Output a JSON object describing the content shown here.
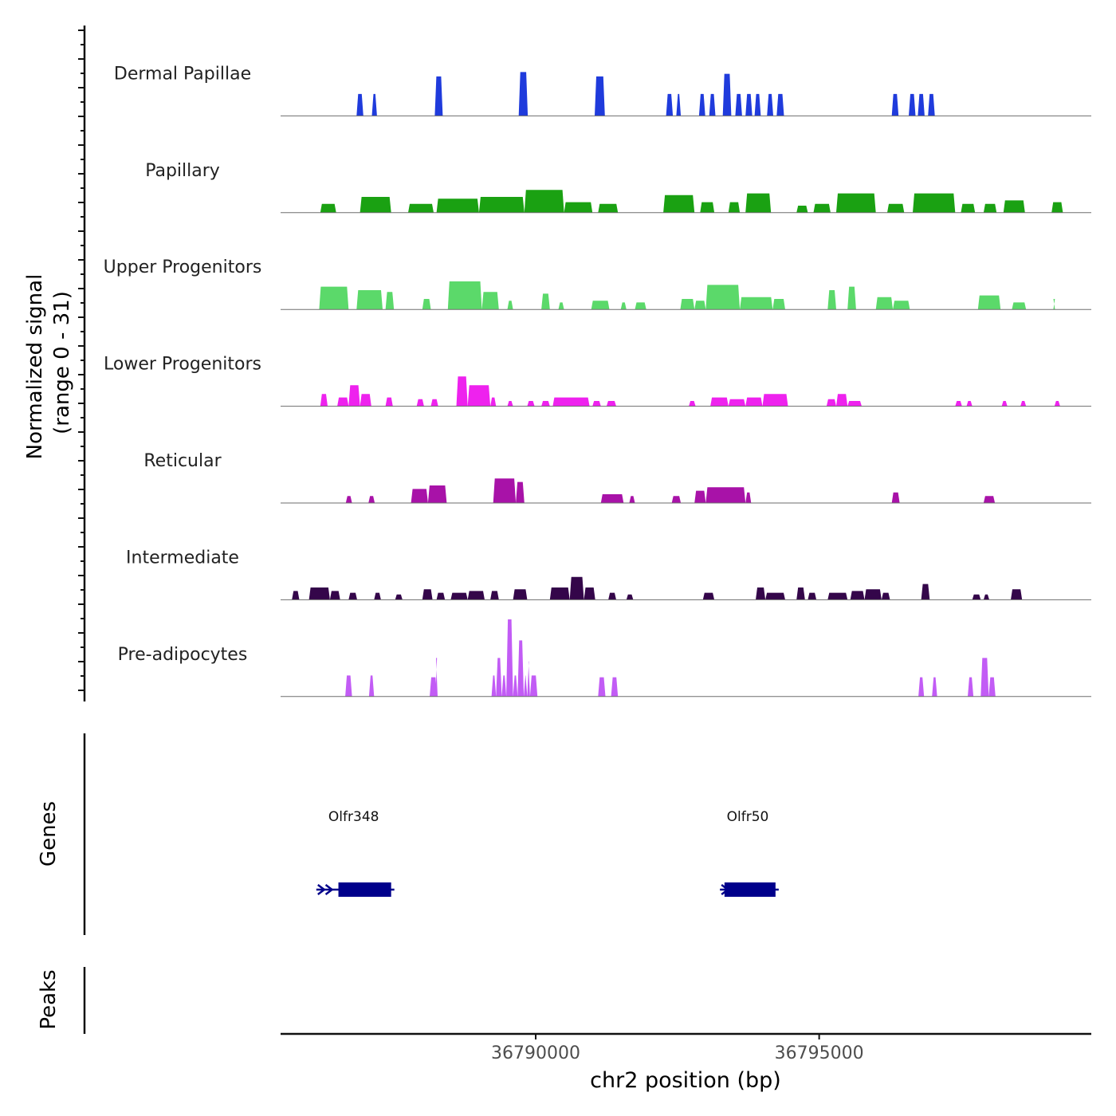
{
  "chart_data": {
    "type": "area",
    "title": "",
    "ylabel_line1": "Normalized signal",
    "ylabel_line2": "(range 0 - 31)",
    "y_range": [
      0,
      31
    ],
    "xlabel": "chr2 position (bp)",
    "xlim": [
      36785500,
      36799800
    ],
    "x_ticks": [
      36790000,
      36795000
    ],
    "x_tick_labels": [
      "36790000",
      "36795000"
    ],
    "tracks": [
      {
        "name": "Dermal Papillae",
        "color": "#1f3bdc",
        "blocks": [
          {
            "s": 36786840,
            "e": 36786960,
            "h": 0.25
          },
          {
            "s": 36787110,
            "e": 36787200,
            "h": 0.25
          },
          {
            "s": 36788220,
            "e": 36788360,
            "h": 0.45
          },
          {
            "s": 36789700,
            "e": 36789860,
            "h": 0.5
          },
          {
            "s": 36791040,
            "e": 36791220,
            "h": 0.45
          },
          {
            "s": 36792300,
            "e": 36792420,
            "h": 0.25
          },
          {
            "s": 36792480,
            "e": 36792560,
            "h": 0.25
          },
          {
            "s": 36792880,
            "e": 36792990,
            "h": 0.25
          },
          {
            "s": 36793060,
            "e": 36793170,
            "h": 0.25
          },
          {
            "s": 36793300,
            "e": 36793450,
            "h": 0.48
          },
          {
            "s": 36793520,
            "e": 36793640,
            "h": 0.25
          },
          {
            "s": 36793700,
            "e": 36793820,
            "h": 0.25
          },
          {
            "s": 36793860,
            "e": 36793970,
            "h": 0.25
          },
          {
            "s": 36794080,
            "e": 36794190,
            "h": 0.25
          },
          {
            "s": 36794250,
            "e": 36794380,
            "h": 0.25
          },
          {
            "s": 36796280,
            "e": 36796400,
            "h": 0.25
          },
          {
            "s": 36796580,
            "e": 36796700,
            "h": 0.25
          },
          {
            "s": 36796740,
            "e": 36796860,
            "h": 0.25
          },
          {
            "s": 36796920,
            "e": 36797040,
            "h": 0.25
          }
        ]
      },
      {
        "name": "Papillary",
        "color": "#1aa112",
        "blocks": [
          {
            "s": 36786200,
            "e": 36786480,
            "h": 0.1
          },
          {
            "s": 36786900,
            "e": 36787450,
            "h": 0.18
          },
          {
            "s": 36787750,
            "e": 36788200,
            "h": 0.1
          },
          {
            "s": 36788250,
            "e": 36789000,
            "h": 0.16
          },
          {
            "s": 36789000,
            "e": 36789800,
            "h": 0.18
          },
          {
            "s": 36789800,
            "e": 36790500,
            "h": 0.26
          },
          {
            "s": 36790500,
            "e": 36791000,
            "h": 0.12
          },
          {
            "s": 36791100,
            "e": 36791450,
            "h": 0.1
          },
          {
            "s": 36792250,
            "e": 36792800,
            "h": 0.2
          },
          {
            "s": 36792900,
            "e": 36793150,
            "h": 0.12
          },
          {
            "s": 36793400,
            "e": 36793600,
            "h": 0.12
          },
          {
            "s": 36793700,
            "e": 36794150,
            "h": 0.22
          },
          {
            "s": 36794600,
            "e": 36794800,
            "h": 0.08
          },
          {
            "s": 36794900,
            "e": 36795200,
            "h": 0.1
          },
          {
            "s": 36795300,
            "e": 36796000,
            "h": 0.22
          },
          {
            "s": 36796200,
            "e": 36796500,
            "h": 0.1
          },
          {
            "s": 36796650,
            "e": 36797400,
            "h": 0.22
          },
          {
            "s": 36797500,
            "e": 36797750,
            "h": 0.1
          },
          {
            "s": 36797900,
            "e": 36798130,
            "h": 0.1
          },
          {
            "s": 36798250,
            "e": 36798630,
            "h": 0.14
          },
          {
            "s": 36799100,
            "e": 36799300,
            "h": 0.12
          }
        ]
      },
      {
        "name": "Upper Progenitors",
        "color": "#5bd96a",
        "blocks": [
          {
            "s": 36786180,
            "e": 36786700,
            "h": 0.26
          },
          {
            "s": 36786840,
            "e": 36787300,
            "h": 0.22
          },
          {
            "s": 36787350,
            "e": 36787500,
            "h": 0.2
          },
          {
            "s": 36788000,
            "e": 36788150,
            "h": 0.12
          },
          {
            "s": 36788450,
            "e": 36789050,
            "h": 0.32
          },
          {
            "s": 36789050,
            "e": 36789350,
            "h": 0.2
          },
          {
            "s": 36789500,
            "e": 36789600,
            "h": 0.1
          },
          {
            "s": 36790100,
            "e": 36790250,
            "h": 0.18
          },
          {
            "s": 36790400,
            "e": 36790500,
            "h": 0.08
          },
          {
            "s": 36790980,
            "e": 36791300,
            "h": 0.1
          },
          {
            "s": 36791500,
            "e": 36791600,
            "h": 0.08
          },
          {
            "s": 36791750,
            "e": 36791950,
            "h": 0.08
          },
          {
            "s": 36792550,
            "e": 36792800,
            "h": 0.12
          },
          {
            "s": 36792800,
            "e": 36793000,
            "h": 0.1
          },
          {
            "s": 36793000,
            "e": 36793600,
            "h": 0.28
          },
          {
            "s": 36793600,
            "e": 36794180,
            "h": 0.14
          },
          {
            "s": 36794180,
            "e": 36794400,
            "h": 0.12
          },
          {
            "s": 36795150,
            "e": 36795300,
            "h": 0.22
          },
          {
            "s": 36795500,
            "e": 36795650,
            "h": 0.26
          },
          {
            "s": 36796000,
            "e": 36796300,
            "h": 0.14
          },
          {
            "s": 36796300,
            "e": 36796600,
            "h": 0.1
          },
          {
            "s": 36797800,
            "e": 36798200,
            "h": 0.16
          },
          {
            "s": 36798400,
            "e": 36798650,
            "h": 0.08
          },
          {
            "s": 36799130,
            "e": 36799160,
            "h": 0.12
          }
        ]
      },
      {
        "name": "Lower Progenitors",
        "color": "#ee22ee",
        "blocks": [
          {
            "s": 36786200,
            "e": 36786330,
            "h": 0.14
          },
          {
            "s": 36786500,
            "e": 36786700,
            "h": 0.1
          },
          {
            "s": 36786700,
            "e": 36786900,
            "h": 0.24
          },
          {
            "s": 36786900,
            "e": 36787100,
            "h": 0.14
          },
          {
            "s": 36787350,
            "e": 36787480,
            "h": 0.1
          },
          {
            "s": 36787900,
            "e": 36788030,
            "h": 0.08
          },
          {
            "s": 36788150,
            "e": 36788280,
            "h": 0.08
          },
          {
            "s": 36788600,
            "e": 36788800,
            "h": 0.34
          },
          {
            "s": 36788800,
            "e": 36789200,
            "h": 0.24
          },
          {
            "s": 36789200,
            "e": 36789300,
            "h": 0.1
          },
          {
            "s": 36789500,
            "e": 36789600,
            "h": 0.06
          },
          {
            "s": 36789850,
            "e": 36789980,
            "h": 0.06
          },
          {
            "s": 36790100,
            "e": 36790250,
            "h": 0.06
          },
          {
            "s": 36790300,
            "e": 36790950,
            "h": 0.1
          },
          {
            "s": 36791000,
            "e": 36791150,
            "h": 0.06
          },
          {
            "s": 36791250,
            "e": 36791420,
            "h": 0.06
          },
          {
            "s": 36792700,
            "e": 36792820,
            "h": 0.06
          },
          {
            "s": 36793080,
            "e": 36793400,
            "h": 0.1
          },
          {
            "s": 36793400,
            "e": 36793700,
            "h": 0.08
          },
          {
            "s": 36793700,
            "e": 36794000,
            "h": 0.1
          },
          {
            "s": 36794000,
            "e": 36794450,
            "h": 0.14
          },
          {
            "s": 36795130,
            "e": 36795300,
            "h": 0.08
          },
          {
            "s": 36795300,
            "e": 36795500,
            "h": 0.14
          },
          {
            "s": 36795500,
            "e": 36795750,
            "h": 0.06
          },
          {
            "s": 36797400,
            "e": 36797520,
            "h": 0.06
          },
          {
            "s": 36797600,
            "e": 36797700,
            "h": 0.06
          },
          {
            "s": 36798220,
            "e": 36798320,
            "h": 0.06
          },
          {
            "s": 36798550,
            "e": 36798650,
            "h": 0.06
          },
          {
            "s": 36799150,
            "e": 36799250,
            "h": 0.06
          }
        ]
      },
      {
        "name": "Reticular",
        "color": "#a812a8",
        "blocks": [
          {
            "s": 36786650,
            "e": 36786760,
            "h": 0.08
          },
          {
            "s": 36787050,
            "e": 36787160,
            "h": 0.08
          },
          {
            "s": 36787800,
            "e": 36788100,
            "h": 0.16
          },
          {
            "s": 36788100,
            "e": 36788430,
            "h": 0.2
          },
          {
            "s": 36789250,
            "e": 36789650,
            "h": 0.28
          },
          {
            "s": 36789650,
            "e": 36789800,
            "h": 0.24
          },
          {
            "s": 36791150,
            "e": 36791550,
            "h": 0.1
          },
          {
            "s": 36791650,
            "e": 36791750,
            "h": 0.08
          },
          {
            "s": 36792400,
            "e": 36792560,
            "h": 0.08
          },
          {
            "s": 36792800,
            "e": 36793000,
            "h": 0.14
          },
          {
            "s": 36793000,
            "e": 36793700,
            "h": 0.18
          },
          {
            "s": 36793700,
            "e": 36793800,
            "h": 0.12
          },
          {
            "s": 36796280,
            "e": 36796420,
            "h": 0.12
          },
          {
            "s": 36797900,
            "e": 36798100,
            "h": 0.08
          }
        ]
      },
      {
        "name": "Intermediate",
        "color": "#34064a",
        "blocks": [
          {
            "s": 36785700,
            "e": 36785830,
            "h": 0.1
          },
          {
            "s": 36786000,
            "e": 36786370,
            "h": 0.14
          },
          {
            "s": 36786370,
            "e": 36786550,
            "h": 0.1
          },
          {
            "s": 36786700,
            "e": 36786850,
            "h": 0.08
          },
          {
            "s": 36787150,
            "e": 36787270,
            "h": 0.08
          },
          {
            "s": 36787520,
            "e": 36787650,
            "h": 0.06
          },
          {
            "s": 36788000,
            "e": 36788180,
            "h": 0.12
          },
          {
            "s": 36788250,
            "e": 36788400,
            "h": 0.08
          },
          {
            "s": 36788500,
            "e": 36788800,
            "h": 0.08
          },
          {
            "s": 36788800,
            "e": 36789100,
            "h": 0.1
          },
          {
            "s": 36789200,
            "e": 36789350,
            "h": 0.1
          },
          {
            "s": 36789600,
            "e": 36789850,
            "h": 0.12
          },
          {
            "s": 36790250,
            "e": 36790600,
            "h": 0.14
          },
          {
            "s": 36790600,
            "e": 36790850,
            "h": 0.26
          },
          {
            "s": 36790850,
            "e": 36791050,
            "h": 0.14
          },
          {
            "s": 36791280,
            "e": 36791420,
            "h": 0.08
          },
          {
            "s": 36791600,
            "e": 36791720,
            "h": 0.06
          },
          {
            "s": 36792950,
            "e": 36793150,
            "h": 0.08
          },
          {
            "s": 36793880,
            "e": 36794050,
            "h": 0.14
          },
          {
            "s": 36794050,
            "e": 36794400,
            "h": 0.08
          },
          {
            "s": 36794600,
            "e": 36794750,
            "h": 0.14
          },
          {
            "s": 36794800,
            "e": 36794950,
            "h": 0.08
          },
          {
            "s": 36795150,
            "e": 36795500,
            "h": 0.08
          },
          {
            "s": 36795550,
            "e": 36795800,
            "h": 0.1
          },
          {
            "s": 36795800,
            "e": 36796100,
            "h": 0.12
          },
          {
            "s": 36796100,
            "e": 36796250,
            "h": 0.08
          },
          {
            "s": 36796800,
            "e": 36796950,
            "h": 0.18
          },
          {
            "s": 36797700,
            "e": 36797850,
            "h": 0.06
          },
          {
            "s": 36797900,
            "e": 36798000,
            "h": 0.06
          },
          {
            "s": 36798380,
            "e": 36798580,
            "h": 0.12
          }
        ]
      },
      {
        "name": "Pre-adipocytes",
        "color": "#c25cf5",
        "blocks": [
          {
            "s": 36786640,
            "e": 36786760,
            "h": 0.24
          },
          {
            "s": 36787060,
            "e": 36787150,
            "h": 0.24
          },
          {
            "s": 36788130,
            "e": 36788260,
            "h": 0.22
          },
          {
            "s": 36788230,
            "e": 36788270,
            "h": 0.44
          },
          {
            "s": 36789220,
            "e": 36789300,
            "h": 0.24
          },
          {
            "s": 36789300,
            "e": 36789400,
            "h": 0.44
          },
          {
            "s": 36789400,
            "e": 36789480,
            "h": 0.24
          },
          {
            "s": 36789480,
            "e": 36789600,
            "h": 0.88
          },
          {
            "s": 36789600,
            "e": 36789680,
            "h": 0.24
          },
          {
            "s": 36789680,
            "e": 36789790,
            "h": 0.64
          },
          {
            "s": 36789790,
            "e": 36789850,
            "h": 0.24
          },
          {
            "s": 36789850,
            "e": 36789900,
            "h": 0.4
          },
          {
            "s": 36789900,
            "e": 36790030,
            "h": 0.24
          },
          {
            "s": 36791100,
            "e": 36791230,
            "h": 0.22
          },
          {
            "s": 36791330,
            "e": 36791450,
            "h": 0.22
          },
          {
            "s": 36796750,
            "e": 36796850,
            "h": 0.22
          },
          {
            "s": 36796990,
            "e": 36797080,
            "h": 0.22
          },
          {
            "s": 36797620,
            "e": 36797720,
            "h": 0.22
          },
          {
            "s": 36797850,
            "e": 36797990,
            "h": 0.44
          },
          {
            "s": 36797990,
            "e": 36798110,
            "h": 0.22
          }
        ]
      }
    ],
    "genes_label": "Genes",
    "genes": [
      {
        "name": "Olfr348",
        "tx_start": 36786130,
        "cds_start": 36786520,
        "end": 36787450,
        "color": "#00008b"
      },
      {
        "name": "Olfr50",
        "tx_start": 36793250,
        "cds_start": 36793330,
        "end": 36794230,
        "color": "#00008b"
      }
    ],
    "peaks_label": "Peaks",
    "peaks": []
  }
}
